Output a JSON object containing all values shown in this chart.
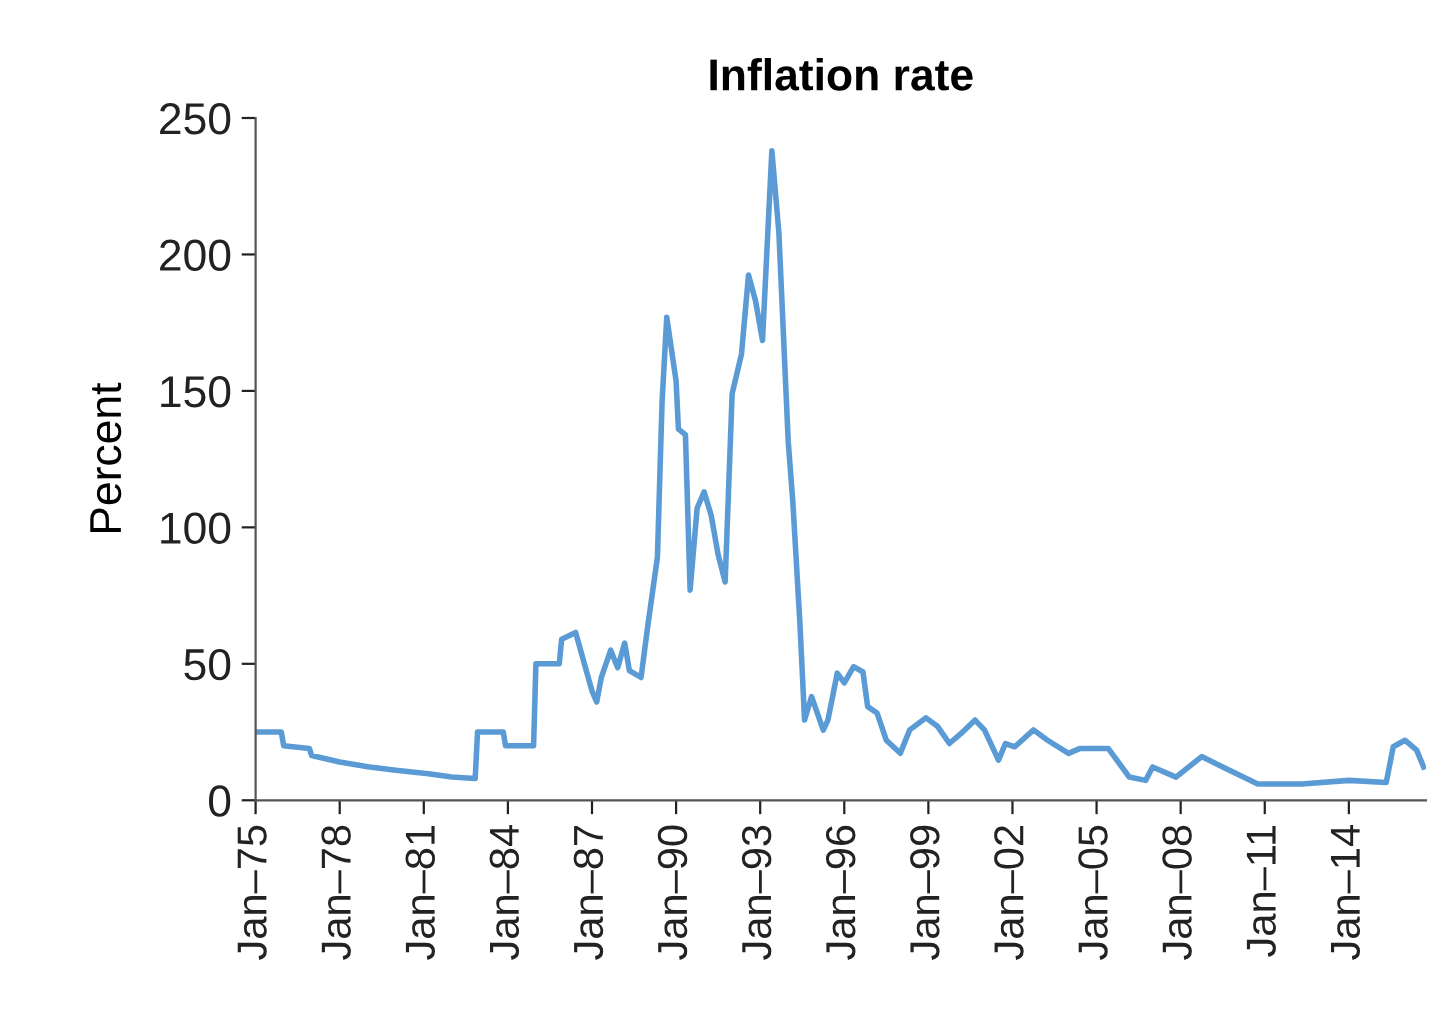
{
  "chart_data": {
    "type": "line",
    "title": "Inflation rate",
    "ylabel": "Percent",
    "x": [
      "1975-01",
      "1975-12",
      "1976-01",
      "1976-12",
      "1977-01",
      "1978-01",
      "1979-01",
      "1980-01",
      "1981-03",
      "1982-01",
      "1982-11",
      "1982-12",
      "1983-11",
      "1983-12",
      "1984-12",
      "1985-01",
      "1985-11",
      "1985-12",
      "1986-06",
      "1987-01",
      "1987-03",
      "1987-05",
      "1987-09",
      "1987-12",
      "1988-03",
      "1988-05",
      "1988-10",
      "1989-01",
      "1989-05",
      "1989-07",
      "1989-09",
      "1990-01",
      "1990-02",
      "1990-05",
      "1990-07",
      "1990-10",
      "1991-01",
      "1991-04",
      "1991-07",
      "1991-10",
      "1992-01",
      "1992-05",
      "1992-08",
      "1992-11",
      "1993-02",
      "1993-03",
      "1993-06",
      "1993-09",
      "1994-01",
      "1994-03",
      "1994-06",
      "1994-08",
      "1994-11",
      "1995-04",
      "1995-06",
      "1995-10",
      "1996-01",
      "1996-05",
      "1996-09",
      "1996-11",
      "1997-03",
      "1997-07",
      "1998-01",
      "1998-05",
      "1998-12",
      "1999-05",
      "1999-10",
      "2000-03",
      "2000-09",
      "2001-01",
      "2001-07",
      "2001-10",
      "2002-02",
      "2002-10",
      "2003-04",
      "2004-01",
      "2004-06",
      "2005-06",
      "2006-03",
      "2006-10",
      "2007-01",
      "2007-11",
      "2008-10",
      "2009-07",
      "2010-10",
      "2012-05",
      "2014-01",
      "2015-05",
      "2015-08",
      "2016-01",
      "2016-06",
      "2016-09"
    ],
    "series": [
      {
        "color": "#5b9bd5",
        "values": [
          25,
          25,
          20,
          19,
          16.4,
          14,
          12.3,
          11,
          9.7,
          8.5,
          8,
          25,
          25,
          20,
          20,
          50,
          50,
          59,
          61.5,
          40,
          36,
          45,
          55,
          48.6,
          57.6,
          47.5,
          45,
          64.6,
          89,
          146,
          177,
          153.6,
          136,
          134,
          77,
          107,
          113,
          104.5,
          90,
          80,
          149,
          163.5,
          192.5,
          183,
          168.5,
          186,
          238,
          208,
          131.5,
          109,
          65,
          29.4,
          38,
          25.7,
          29.4,
          46.6,
          43,
          49,
          47,
          34.3,
          32,
          22,
          17.2,
          25.8,
          30.2,
          27,
          20.8,
          24.5,
          29.4,
          25.8,
          14.7,
          20.8,
          19.6,
          25.8,
          22,
          17.2,
          19,
          19,
          8.5,
          7.3,
          12.2,
          8.5,
          16,
          12.2,
          6,
          6,
          7.3,
          6.5,
          19.6,
          22,
          18.4,
          12.2
        ]
      }
    ],
    "xlim": [
      "1975-01",
      "2016-10"
    ],
    "xticks": [
      {
        "value": "1975-01",
        "label": "Jan–75"
      },
      {
        "value": "1978-01",
        "label": "Jan–78"
      },
      {
        "value": "1981-01",
        "label": "Jan–81"
      },
      {
        "value": "1984-01",
        "label": "Jan–84"
      },
      {
        "value": "1987-01",
        "label": "Jan–87"
      },
      {
        "value": "1990-01",
        "label": "Jan–90"
      },
      {
        "value": "1993-01",
        "label": "Jan–93"
      },
      {
        "value": "1996-01",
        "label": "Jan–96"
      },
      {
        "value": "1999-01",
        "label": "Jan–99"
      },
      {
        "value": "2002-01",
        "label": "Jan–02"
      },
      {
        "value": "2005-01",
        "label": "Jan–05"
      },
      {
        "value": "2008-01",
        "label": "Jan–08"
      },
      {
        "value": "2011-01",
        "label": "Jan–11"
      },
      {
        "value": "2014-01",
        "label": "Jan–14"
      }
    ],
    "ylim": [
      0,
      250
    ],
    "yticks": [
      0,
      50,
      100,
      150,
      200,
      250
    ],
    "grid": false,
    "legend": false,
    "line_style": "solid",
    "marker": "none"
  }
}
